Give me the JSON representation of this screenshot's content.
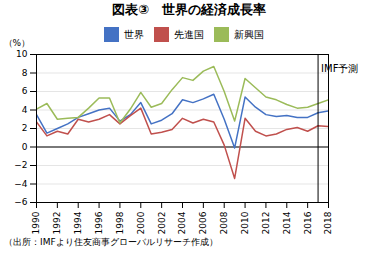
{
  "chart_data": {
    "type": "line",
    "title": "図表③　世界の経済成長率",
    "source": "（出所：IMFより住友商事グローバルリサーチ作成）",
    "ylabel": "（%）",
    "x": [
      1990,
      1991,
      1992,
      1993,
      1994,
      1995,
      1996,
      1997,
      1998,
      1999,
      2000,
      2001,
      2002,
      2003,
      2004,
      2005,
      2006,
      2007,
      2008,
      2009,
      2010,
      2011,
      2012,
      2013,
      2014,
      2015,
      2016,
      2017,
      2018
    ],
    "series": [
      {
        "name": "世界",
        "color": "#4472C4",
        "values": [
          3.5,
          1.5,
          2.0,
          2.5,
          3.2,
          3.6,
          4.0,
          4.2,
          2.8,
          3.5,
          4.8,
          2.5,
          2.9,
          3.6,
          5.1,
          4.8,
          5.2,
          5.7,
          3.0,
          -0.1,
          5.4,
          4.3,
          3.5,
          3.3,
          3.4,
          3.2,
          3.2,
          3.7,
          3.9
        ]
      },
      {
        "name": "先進国",
        "color": "#C0504D",
        "values": [
          2.7,
          1.2,
          1.7,
          1.4,
          3.0,
          2.7,
          3.0,
          3.5,
          2.5,
          3.4,
          4.2,
          1.4,
          1.6,
          1.9,
          3.1,
          2.6,
          3.0,
          2.7,
          0.2,
          -3.4,
          3.1,
          1.7,
          1.2,
          1.4,
          1.9,
          2.1,
          1.7,
          2.3,
          2.2
        ]
      },
      {
        "name": "新興国",
        "color": "#9BBB59",
        "values": [
          4.1,
          4.7,
          3.0,
          3.1,
          3.2,
          4.2,
          5.3,
          5.3,
          2.6,
          4.1,
          5.9,
          4.3,
          4.7,
          6.2,
          7.5,
          7.2,
          8.2,
          8.7,
          6.0,
          2.8,
          7.4,
          6.4,
          5.4,
          5.1,
          4.6,
          4.2,
          4.3,
          4.7,
          5.1
        ]
      }
    ],
    "annotations": [
      {
        "type": "vline",
        "x": 2017,
        "text": "IMF予測"
      },
      {
        "type": "hline",
        "y": 0
      }
    ],
    "xlim": [
      1990,
      2018
    ],
    "xticks": [
      1990,
      1992,
      1994,
      1996,
      1998,
      2000,
      2002,
      2004,
      2006,
      2008,
      2010,
      2012,
      2014,
      2016,
      2018
    ],
    "ylim": [
      -6,
      10
    ],
    "yticks": [
      -6,
      -4,
      -2,
      0,
      2,
      4,
      6,
      8,
      10
    ],
    "grid": true,
    "legend": "top"
  }
}
